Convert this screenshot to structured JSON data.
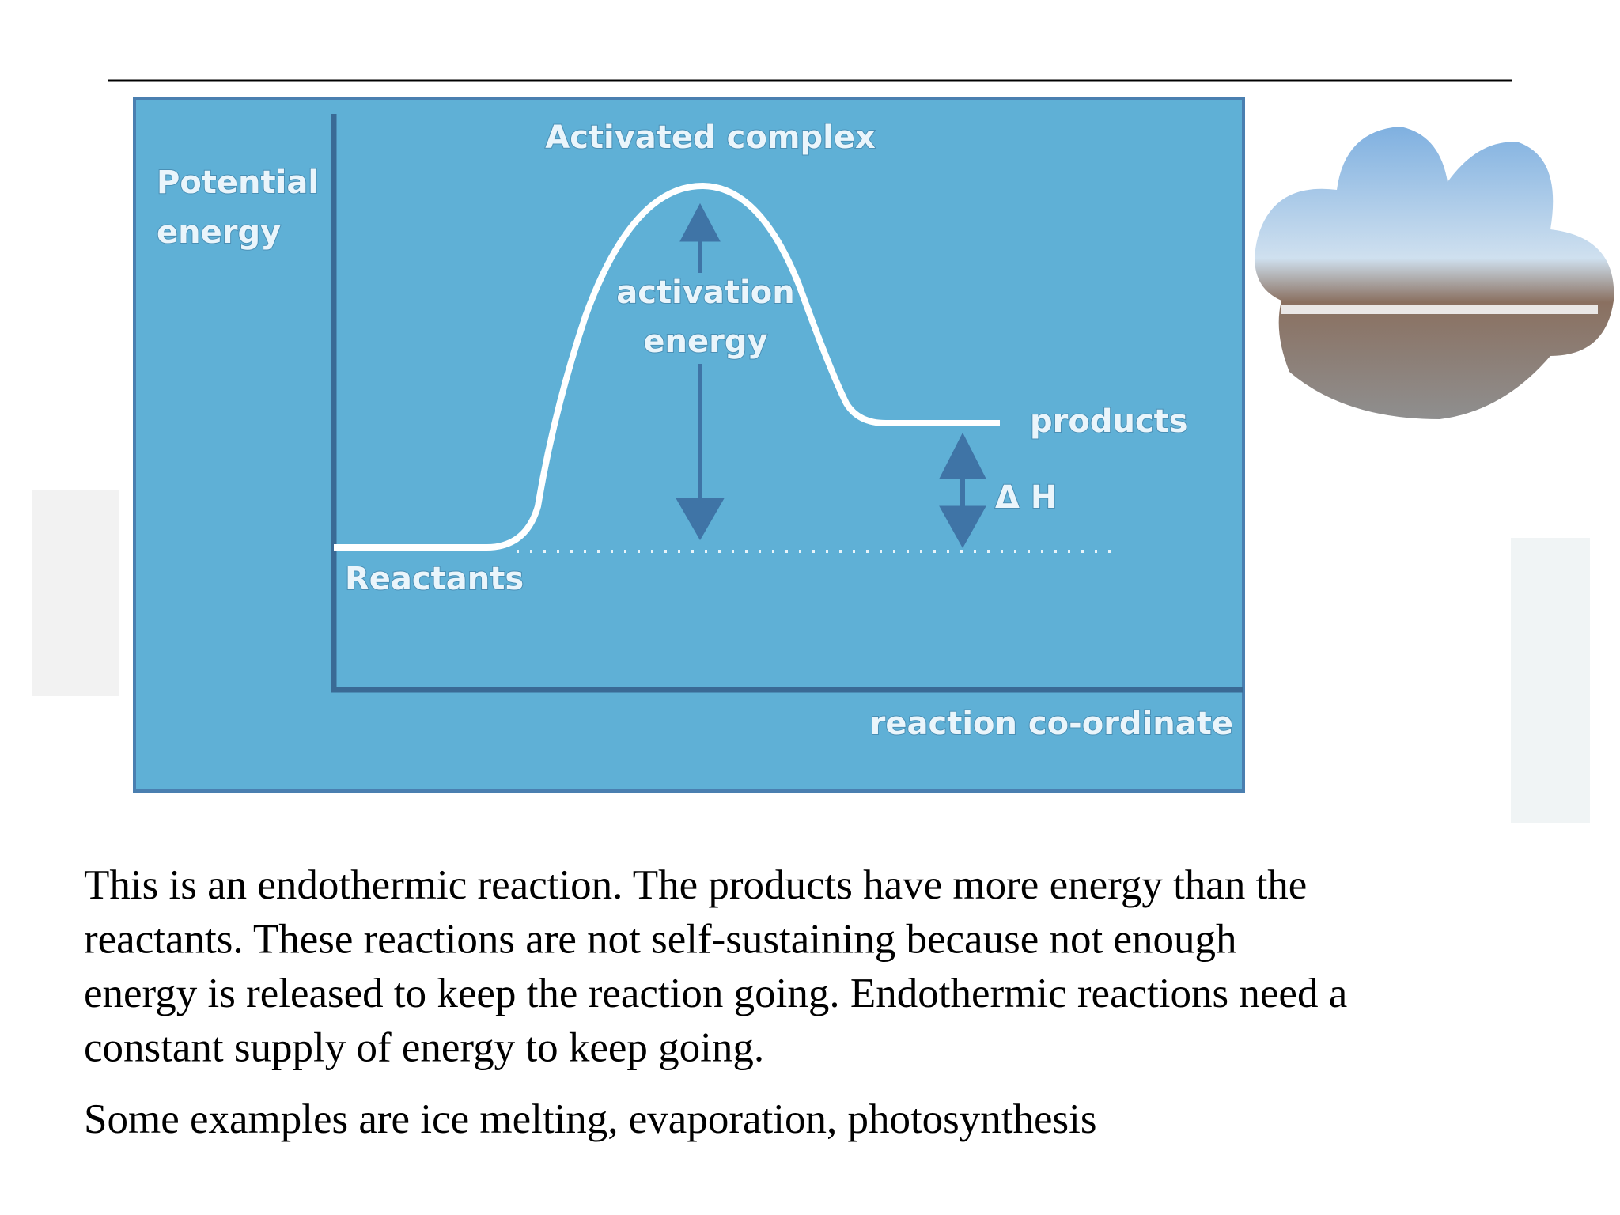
{
  "diagram": {
    "y_axis_label": [
      "Potential",
      "energy"
    ],
    "peak_label": "Activated complex",
    "activation_label": [
      "activation",
      "energy"
    ],
    "products_label": "products",
    "delta_label": "Δ H",
    "reactants_label": "Reactants",
    "x_axis_label": "reaction co-ordinate"
  },
  "paragraphs": [
    {
      "lines": [
        "This is an endothermic reaction.  The products have more energy than the",
        "reactants.  These reactions are not self-sustaining because not enough",
        "energy is released to keep the reaction going.  Endothermic reactions need a",
        "constant supply of energy  to keep going."
      ]
    },
    {
      "lines": [
        "Some examples are ice melting, evaporation,  photosynthesis"
      ]
    }
  ]
}
